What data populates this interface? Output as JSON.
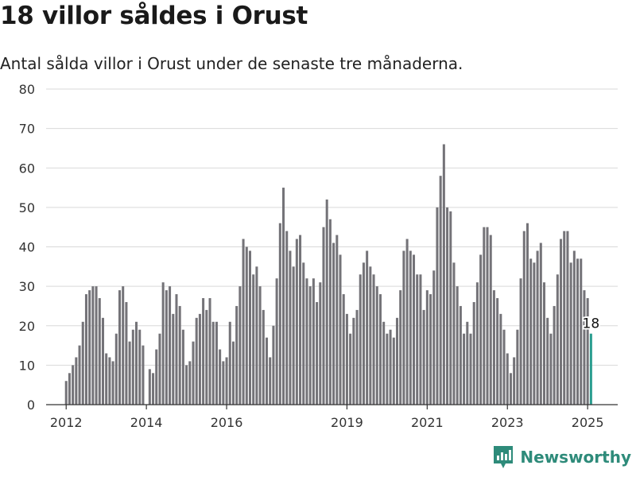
{
  "header": {
    "title": "18 villor såldes i Orust",
    "subtitle": "Antal sålda villor i Orust under de senaste tre månaderna."
  },
  "brand": {
    "name": "Newsworthy",
    "color": "#2e8b7a",
    "icon": "newsworthy-logo-icon"
  },
  "colors": {
    "bar": "#747378",
    "highlight": "#2a9d8f",
    "grid": "#d9d9d9",
    "axis": "#333333"
  },
  "chart_data": {
    "type": "bar",
    "title": "18 villor såldes i Orust",
    "subtitle": "Antal sålda villor i Orust under de senaste tre månaderna.",
    "xlabel": "",
    "ylabel": "",
    "ylim": [
      0,
      80
    ],
    "yticks": [
      0,
      10,
      20,
      30,
      40,
      50,
      60,
      70,
      80
    ],
    "xlim": [
      2011.5,
      2025.75
    ],
    "xticks": [
      {
        "value": 2012,
        "label": "2012"
      },
      {
        "value": 2014,
        "label": "2014"
      },
      {
        "value": 2016,
        "label": "2016"
      },
      {
        "value": 2019,
        "label": "2019"
      },
      {
        "value": 2021,
        "label": "2021"
      },
      {
        "value": 2023,
        "label": "2023"
      },
      {
        "value": 2025,
        "label": "2025"
      }
    ],
    "grid": true,
    "start": {
      "year": 2012,
      "month": 1
    },
    "values": [
      6,
      8,
      10,
      12,
      15,
      21,
      28,
      29,
      30,
      30,
      27,
      22,
      13,
      12,
      11,
      18,
      29,
      30,
      26,
      16,
      19,
      21,
      19,
      15,
      0,
      9,
      8,
      14,
      18,
      31,
      29,
      30,
      23,
      28,
      25,
      19,
      10,
      11,
      16,
      22,
      23,
      27,
      24,
      27,
      21,
      21,
      14,
      11,
      12,
      21,
      16,
      25,
      30,
      42,
      40,
      39,
      33,
      35,
      30,
      24,
      17,
      12,
      20,
      32,
      46,
      55,
      44,
      39,
      35,
      42,
      43,
      36,
      32,
      30,
      32,
      26,
      31,
      45,
      52,
      47,
      41,
      43,
      38,
      28,
      23,
      18,
      22,
      24,
      33,
      36,
      39,
      35,
      33,
      30,
      28,
      21,
      18,
      19,
      17,
      22,
      29,
      39,
      42,
      39,
      38,
      33,
      33,
      24,
      29,
      28,
      34,
      50,
      58,
      66,
      50,
      49,
      36,
      30,
      25,
      18,
      21,
      18,
      26,
      31,
      38,
      45,
      45,
      43,
      29,
      27,
      23,
      19,
      13,
      8,
      12,
      19,
      32,
      44,
      46,
      37,
      36,
      39,
      41,
      31,
      22,
      18,
      25,
      33,
      42,
      44,
      44,
      36,
      39,
      37,
      37,
      29,
      27,
      18
    ],
    "highlight_last": true,
    "annotations": [
      {
        "label": "18"
      }
    ]
  }
}
